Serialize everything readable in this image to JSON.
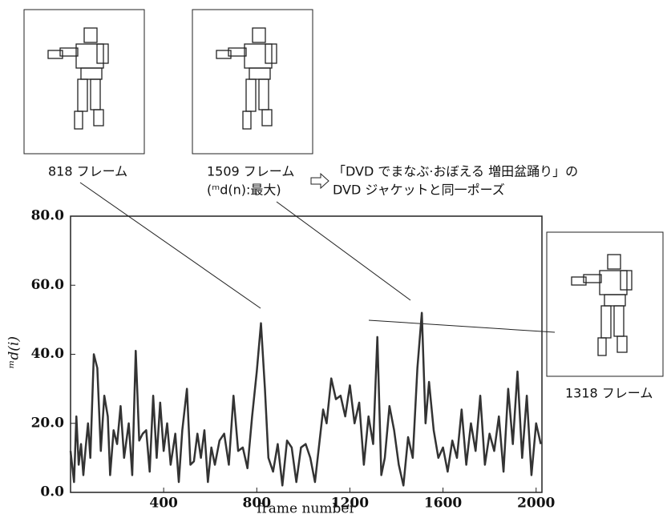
{
  "chart_data": {
    "type": "line",
    "y_label": "ᵐd(i)",
    "x_label": "frame number",
    "annotations": [
      "818 フレーム",
      "1509 フレーム",
      "(ᵐd(n):最大)",
      "「DVD でまなぶ·おぼえる 増田盆踊り」の",
      "DVD ジャケットと同一ポーズ",
      "1318 フレーム"
    ],
    "x": [
      0,
      15,
      25,
      35,
      45,
      55,
      65,
      75,
      85,
      100,
      115,
      130,
      145,
      160,
      170,
      185,
      200,
      215,
      230,
      250,
      265,
      280,
      295,
      310,
      325,
      340,
      355,
      370,
      385,
      400,
      415,
      430,
      450,
      465,
      480,
      500,
      515,
      530,
      545,
      560,
      575,
      590,
      605,
      620,
      640,
      660,
      680,
      700,
      720,
      740,
      760,
      780,
      800,
      818,
      835,
      850,
      870,
      890,
      910,
      930,
      950,
      970,
      990,
      1010,
      1030,
      1050,
      1070,
      1085,
      1100,
      1120,
      1140,
      1160,
      1180,
      1200,
      1220,
      1240,
      1260,
      1280,
      1300,
      1318,
      1335,
      1350,
      1370,
      1390,
      1410,
      1430,
      1450,
      1470,
      1490,
      1509,
      1525,
      1540,
      1560,
      1580,
      1600,
      1620,
      1640,
      1660,
      1680,
      1700,
      1720,
      1740,
      1760,
      1780,
      1800,
      1820,
      1840,
      1860,
      1880,
      1900,
      1920,
      1940,
      1960,
      1980,
      2000,
      2020
    ],
    "series": [
      {
        "color": "#333333",
        "values": [
          12,
          3,
          22,
          8,
          14,
          5,
          13,
          20,
          10,
          40,
          36,
          12,
          28,
          22,
          5,
          18,
          14,
          25,
          10,
          20,
          5,
          41,
          15,
          17,
          18,
          6,
          28,
          10,
          26,
          12,
          20,
          8,
          17,
          3,
          18,
          30,
          8,
          9,
          17,
          10,
          18,
          3,
          13,
          8,
          15,
          17,
          8,
          28,
          12,
          13,
          7,
          22,
          35,
          49,
          30,
          10,
          6,
          14,
          2,
          15,
          13,
          3,
          13,
          14,
          10,
          3,
          15,
          24,
          20,
          33,
          27,
          28,
          22,
          31,
          20,
          26,
          8,
          22,
          14,
          45,
          5,
          10,
          25,
          18,
          8,
          2,
          16,
          10,
          36,
          52,
          20,
          32,
          18,
          10,
          13,
          6,
          15,
          10,
          24,
          8,
          20,
          12,
          28,
          8,
          17,
          12,
          22,
          6,
          30,
          14,
          35,
          10,
          28,
          5,
          20,
          14
        ]
      }
    ],
    "xlim": [
      0,
      2025
    ],
    "ylim": [
      0,
      80
    ],
    "xticks": [
      400,
      800,
      1200,
      1600,
      2000
    ],
    "yticks": [
      {
        "value": 0,
        "label": "0.0"
      },
      {
        "value": 20,
        "label": "20.0"
      },
      {
        "value": 40,
        "label": "40.0"
      },
      {
        "value": 60,
        "label": "60.0"
      },
      {
        "value": 80,
        "label": "80.0"
      }
    ]
  }
}
